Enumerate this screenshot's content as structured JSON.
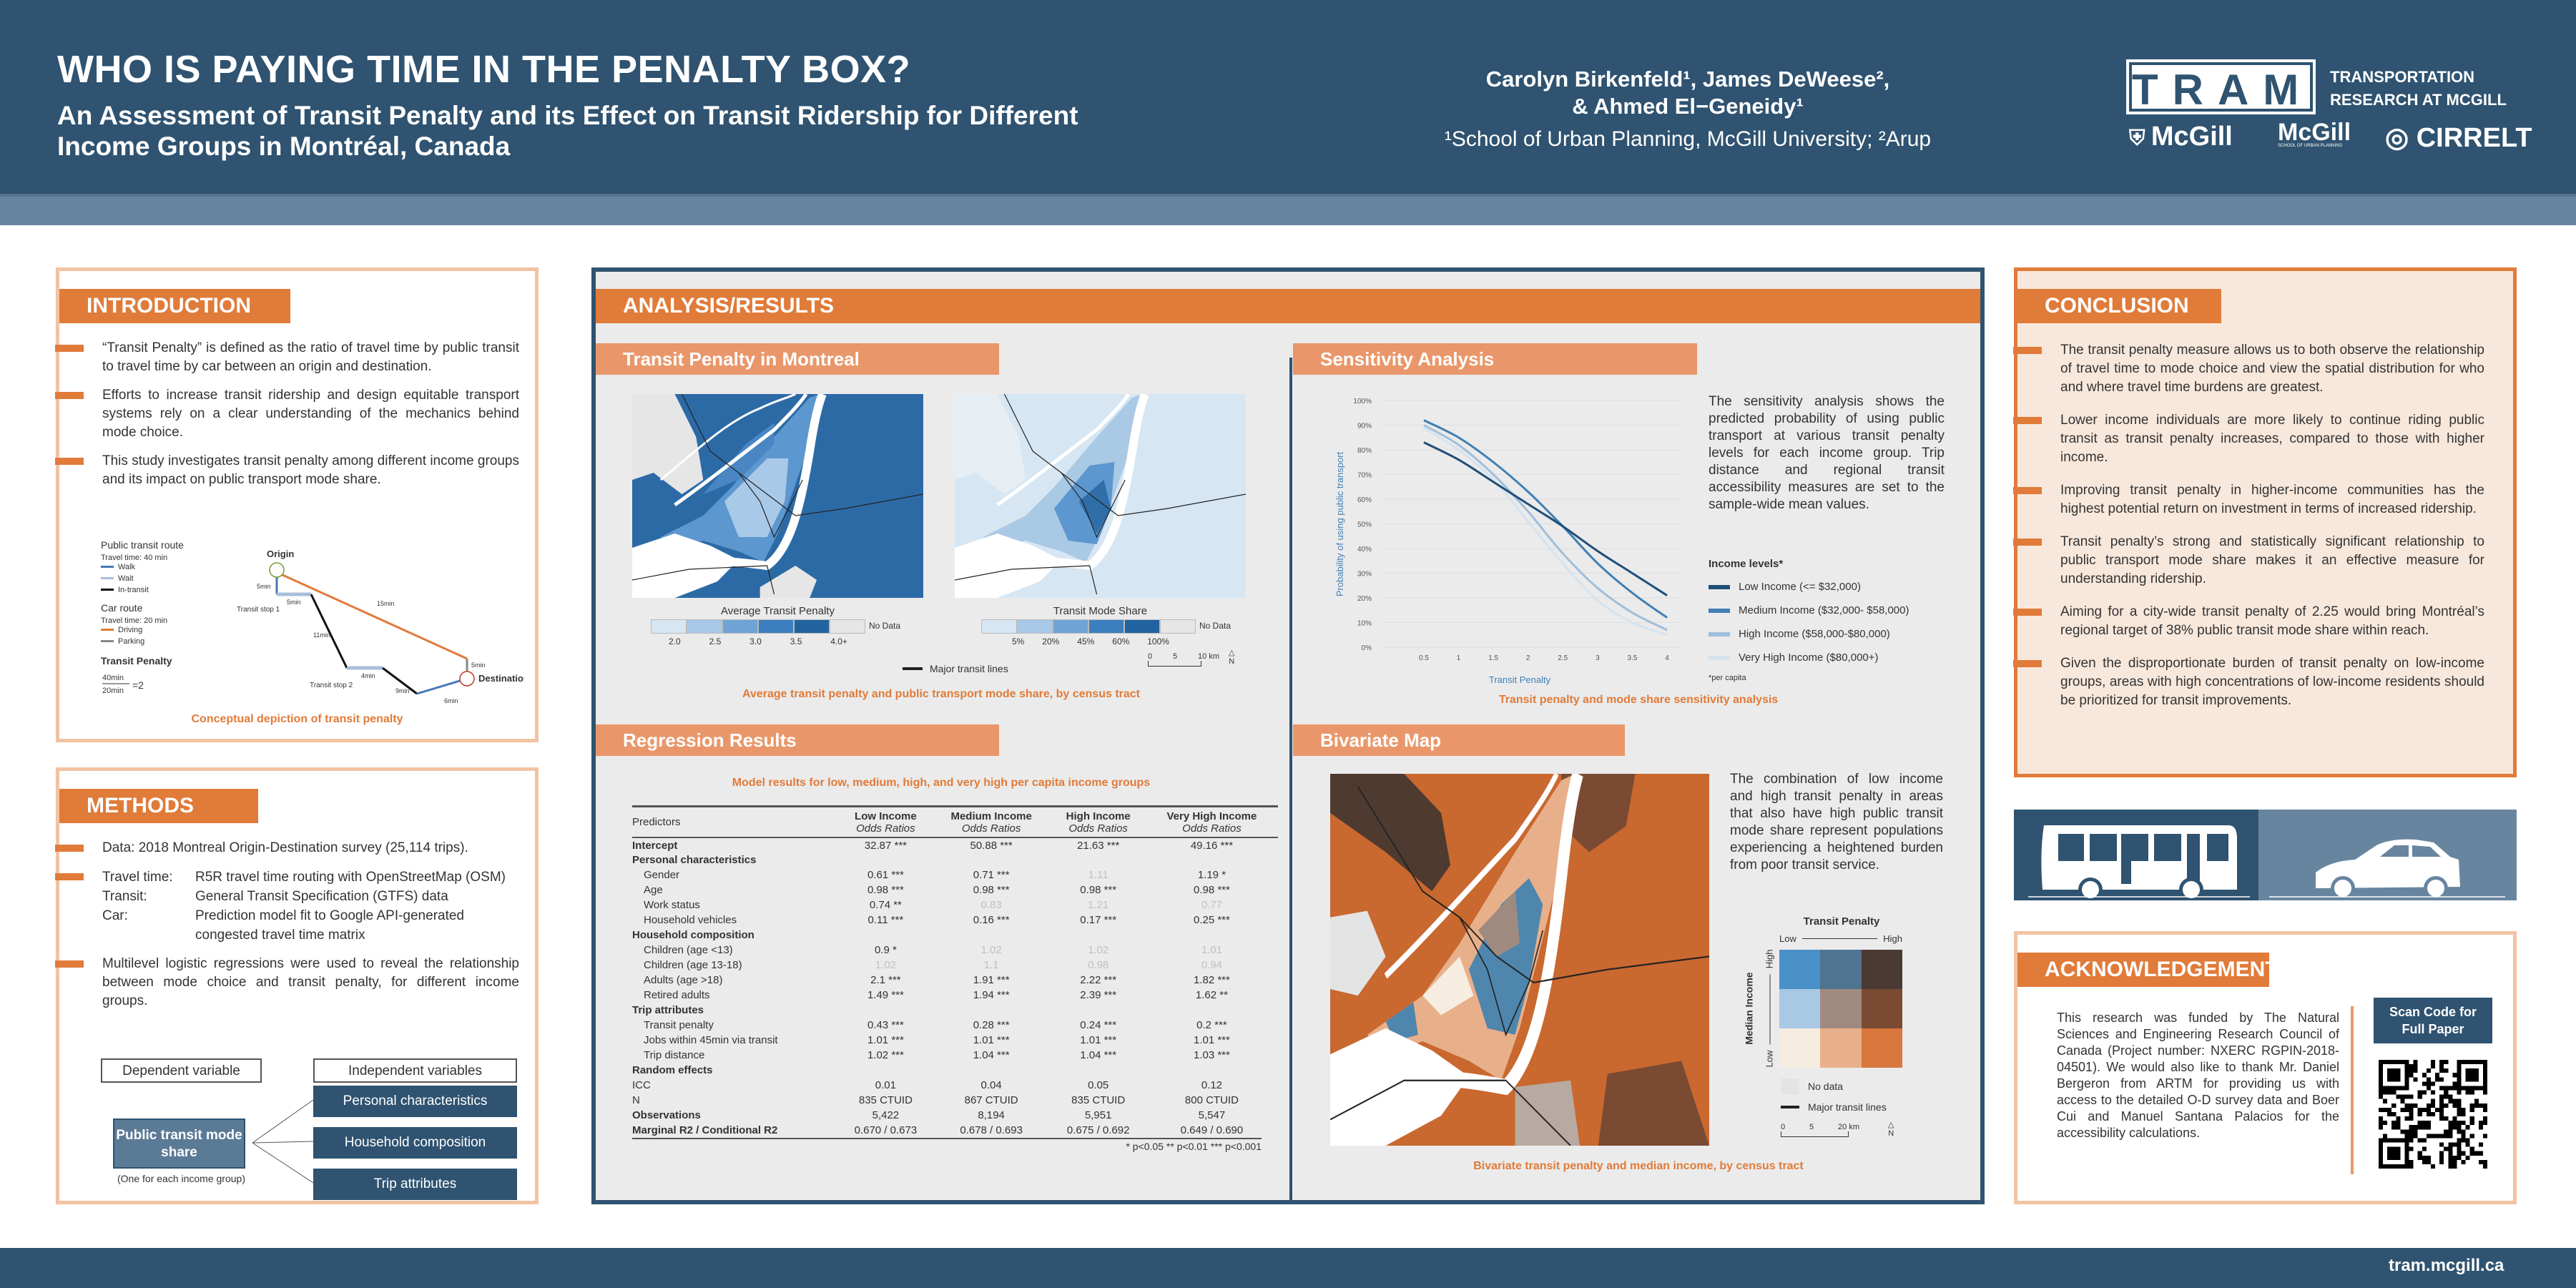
{
  "header": {
    "title": "WHO IS PAYING TIME IN THE PENALTY BOX?",
    "subtitle_line1": "An Assessment of Transit Penalty and its Effect on Transit Ridership for Different",
    "subtitle_line2": "Income Groups in Montréal, Canada",
    "authors_line1": "Carolyn Birkenfeld¹, James DeWeese²,",
    "authors_line2": "& Ahmed El−Geneidy¹",
    "affiliation": "¹School of Urban Planning, McGill University; ²Arup",
    "logos": {
      "tram": "TRAM",
      "tram_sub1": "TRANSPORTATION",
      "tram_sub2": "RESEARCH AT MCGILL",
      "mcgill": "McGill",
      "mcgill_urban": "McGill",
      "mcgill_urban_sub": "SCHOOL OF URBAN PLANNING",
      "cirrelt": "CIRRELT"
    }
  },
  "intro": {
    "heading": "INTRODUCTION",
    "bullets": [
      "“Transit Penalty” is defined as the ratio of travel time by public transit to travel time by car between an origin and destination.",
      "Efforts to increase transit ridership and design equitable transport systems rely on a clear understanding of the mechanics behind mode choice.",
      "This study investigates transit penalty among different income groups and its impact on public transport mode share."
    ],
    "diagram": {
      "pt_title": "Public transit route",
      "pt_time": "Travel time: 40 min",
      "walk": "Walk",
      "wait": "Wait",
      "in_transit": "In-transit",
      "car_title": "Car route",
      "car_time": "Travel time: 20 min",
      "driving": "Driving",
      "parking": "Parking",
      "tp_title": "Transit Penalty",
      "tp_num": "40min",
      "tp_den": "20min",
      "tp_result": "=2",
      "origin": "Origin",
      "destination": "Destination",
      "stop1": "Transit stop 1",
      "stop2": "Transit stop 2",
      "seg_walk1": "5min",
      "seg_wait1": "5min",
      "seg_transit1": "11min",
      "seg_wait2": "4min",
      "seg_transit2": "9min",
      "seg_walk2": "6min",
      "seg_drive": "15min",
      "seg_park": "5min"
    },
    "caption": "Conceptual depiction of transit penalty"
  },
  "methods": {
    "heading": "METHODS",
    "data_bullet": "Data: 2018 Montreal Origin-Destination survey (25,114 trips).",
    "travel_time_label": "Travel time:",
    "travel_time_value": "R5R travel time routing with OpenStreetMap (OSM)",
    "transit_label": "Transit:",
    "transit_value": "General Transit Specification (GTFS) data",
    "car_label": "Car:",
    "car_value": "Prediction model fit to Google API-generated congested travel time matrix",
    "regression_bullet": "Multilevel logistic regressions were used to reveal the relationship between mode choice and transit penalty, for different income groups.",
    "dependent_label": "Dependent variable",
    "independent_label": "Independent variables",
    "dependent_box": "Public transit mode share",
    "dependent_note": "(One for each income group)",
    "independent": [
      "Personal characteristics",
      "Household composition",
      "Trip attributes"
    ]
  },
  "analysis": {
    "heading": "ANALYSIS/RESULTS",
    "maps": {
      "heading": "Transit Penalty in Montreal",
      "map1_title": "Average Transit Penalty",
      "map1_ticks": [
        "2.0",
        "2.5",
        "3.0",
        "3.5",
        "4.0+"
      ],
      "map2_title": "Transit Mode Share",
      "map2_ticks": [
        "5%",
        "20%",
        "45%",
        "60%",
        "100%"
      ],
      "no_data": "No Data",
      "transit_lines": "Major transit lines",
      "scale": [
        "0",
        "5",
        "10 km"
      ],
      "north": "N",
      "caption": "Average transit penalty and public transport mode share, by census tract"
    },
    "regression": {
      "heading": "Regression Results",
      "caption": "Model results for low, medium, high, and very high per capita income groups",
      "predictors_label": "Predictors",
      "columns": [
        "Low Income",
        "Medium Income",
        "High Income",
        "Very High Income"
      ],
      "subheader": "Odds Ratios",
      "rows": [
        {
          "label": "Intercept",
          "type": "bold",
          "cells": [
            {
              "text": "32.87 ***"
            },
            {
              "text": "50.88 ***"
            },
            {
              "text": "21.63 ***"
            },
            {
              "text": "49.16 ***"
            }
          ]
        },
        {
          "label": "Personal characteristics",
          "type": "group",
          "cells": []
        },
        {
          "label": "Gender",
          "type": "item",
          "cells": [
            {
              "text": "0.61 ***"
            },
            {
              "text": "0.71 ***"
            },
            {
              "text": "1.11",
              "ns": true
            },
            {
              "text": "1.19 *"
            }
          ]
        },
        {
          "label": "Age",
          "type": "item",
          "cells": [
            {
              "text": "0.98 ***"
            },
            {
              "text": "0.98 ***"
            },
            {
              "text": "0.98 ***"
            },
            {
              "text": "0.98 ***"
            }
          ]
        },
        {
          "label": "Work status",
          "type": "item",
          "cells": [
            {
              "text": "0.74 **"
            },
            {
              "text": "0.83",
              "ns": true
            },
            {
              "text": "1.21",
              "ns": true
            },
            {
              "text": "0.77",
              "ns": true
            }
          ]
        },
        {
          "label": "Household vehicles",
          "type": "item",
          "cells": [
            {
              "text": "0.11 ***"
            },
            {
              "text": "0.16 ***"
            },
            {
              "text": "0.17 ***"
            },
            {
              "text": "0.25 ***"
            }
          ]
        },
        {
          "label": "Household composition",
          "type": "group",
          "cells": []
        },
        {
          "label": "Children (age <13)",
          "type": "item",
          "cells": [
            {
              "text": "0.9 *"
            },
            {
              "text": "1.02",
              "ns": true
            },
            {
              "text": "1.02",
              "ns": true
            },
            {
              "text": "1.01",
              "ns": true
            }
          ]
        },
        {
          "label": "Children (age 13-18)",
          "type": "item",
          "cells": [
            {
              "text": "1.02",
              "ns": true
            },
            {
              "text": "1.1",
              "ns": true
            },
            {
              "text": "0.98",
              "ns": true
            },
            {
              "text": "0.94",
              "ns": true
            }
          ]
        },
        {
          "label": "Adults (age >18)",
          "type": "item",
          "cells": [
            {
              "text": "2.1 ***"
            },
            {
              "text": "1.91 ***"
            },
            {
              "text": "2.22 ***"
            },
            {
              "text": "1.82 ***"
            }
          ]
        },
        {
          "label": "Retired adults",
          "type": "item",
          "cells": [
            {
              "text": "1.49 ***"
            },
            {
              "text": "1.94 ***"
            },
            {
              "text": "2.39 ***"
            },
            {
              "text": "1.62 **"
            }
          ]
        },
        {
          "label": "Trip attributes",
          "type": "group",
          "cells": []
        },
        {
          "label": "Transit penalty",
          "type": "item",
          "cells": [
            {
              "text": "0.43 ***"
            },
            {
              "text": "0.28 ***"
            },
            {
              "text": "0.24 ***"
            },
            {
              "text": "0.2 ***"
            }
          ]
        },
        {
          "label": "Jobs within 45min via transit",
          "type": "item",
          "cells": [
            {
              "text": "1.01 ***"
            },
            {
              "text": "1.01 ***"
            },
            {
              "text": "1.01 ***"
            },
            {
              "text": "1.01 ***"
            }
          ]
        },
        {
          "label": "Trip distance",
          "type": "item",
          "cells": [
            {
              "text": "1.02 ***"
            },
            {
              "text": "1.04 ***"
            },
            {
              "text": "1.04 ***"
            },
            {
              "text": "1.03 ***"
            }
          ]
        },
        {
          "label": "Random effects",
          "type": "group",
          "cells": []
        },
        {
          "label": "ICC",
          "type": "stat",
          "cells": [
            {
              "text": "0.01"
            },
            {
              "text": "0.04"
            },
            {
              "text": "0.05"
            },
            {
              "text": "0.12"
            }
          ]
        },
        {
          "label": "N",
          "type": "stat",
          "cells": [
            {
              "text": "835 CTUID"
            },
            {
              "text": "867 CTUID"
            },
            {
              "text": "835 CTUID"
            },
            {
              "text": "800 CTUID"
            }
          ]
        },
        {
          "label": "Observations",
          "type": "bold",
          "cells": [
            {
              "text": "5,422"
            },
            {
              "text": "8,194"
            },
            {
              "text": "5,951"
            },
            {
              "text": "5,547"
            }
          ]
        },
        {
          "label": "Marginal R2 / Conditional R2",
          "type": "bold",
          "cells": [
            {
              "text": "0.670 / 0.673"
            },
            {
              "text": "0.678 / 0.693"
            },
            {
              "text": "0.675 / 0.692"
            },
            {
              "text": "0.649 / 0.690"
            }
          ]
        }
      ],
      "footnote": "* p<0.05   ** p<0.01   *** p<0.001"
    },
    "sensitivity": {
      "heading": "Sensitivity Analysis",
      "text": "The sensitivity analysis shows the predicted probability of using public transport at various transit penalty levels for each income group. Trip distance and regional transit accessibility measures are set to the sample-wide mean values.",
      "legend_title": "Income levels*",
      "per_capita": "*per capita",
      "caption": "Transit penalty and mode share sensitivity analysis"
    },
    "bivariate": {
      "heading": "Bivariate Map",
      "text": "The combination of low income and high transit penalty in areas that also have high public transit mode share represent populations experiencing a heightened burden from poor transit service.",
      "legend_title": "Transit Penalty",
      "x_low": "Low",
      "x_high": "High",
      "y_title": "Median Income",
      "y_low": "Low",
      "y_high": "High",
      "no_data": "No data",
      "transit_lines": "Major transit lines",
      "scale": [
        "0",
        "5",
        "20 km"
      ],
      "north": "N",
      "caption": "Bivariate transit penalty and median income, by census tract"
    }
  },
  "chart_data": {
    "type": "line",
    "xlabel": "Transit Penalty",
    "ylabel": "Probability of using public transport",
    "x": [
      0.5,
      1,
      1.5,
      2,
      2.5,
      3,
      3.5,
      4
    ],
    "xticks": [
      "0.5",
      "1",
      "1.5",
      "2",
      "2.5",
      "3",
      "3.5",
      "4"
    ],
    "yticks": [
      "0%",
      "10%",
      "20%",
      "30%",
      "40%",
      "50%",
      "60%",
      "70%",
      "80%",
      "90%",
      "100%"
    ],
    "ylim": [
      0,
      100
    ],
    "grid": true,
    "legend": "right",
    "series": [
      {
        "name": "Low Income (<= $32,000)",
        "color": "#1f4e79",
        "values": [
          83,
          76,
          67,
          58,
          49,
          39,
          30,
          21
        ]
      },
      {
        "name": "Medium Income ($32,000- $58,000)",
        "color": "#3f7fb5",
        "values": [
          92,
          85,
          75,
          63,
          49,
          34,
          22,
          12
        ]
      },
      {
        "name": "High Income ($58,000-$80,000)",
        "color": "#9fbfdc",
        "values": [
          90,
          82,
          70,
          55,
          38,
          24,
          14,
          7
        ]
      },
      {
        "name": "Very High Income ($80,000+)",
        "color": "#d5e3f0",
        "values": [
          89,
          80,
          68,
          51,
          34,
          19,
          10,
          5
        ]
      }
    ]
  },
  "conclusion": {
    "heading": "CONCLUSION",
    "bullets": [
      "The transit penalty measure allows us to both observe the relationship of travel time to mode choice and view the spatial distribution for who and where travel time burdens are greatest.",
      "Lower income individuals are more likely to continue riding public transit as transit penalty increases, compared to those with higher income.",
      "Improving transit penalty in higher-income communities has the highest potential return on investment in terms of increased ridership.",
      "Transit penalty’s strong and statistically significant relationship to public transport mode share makes it an effective measure for understanding ridership.",
      "Aiming for a city-wide transit penalty of 2.25 would bring Montréal’s regional target of 38% public transit mode share within reach.",
      "Given the disproportionate burden of transit penalty on low-income groups, areas with high concentrations of low-income residents should be prioritized for transit improvements."
    ]
  },
  "acknowledgements": {
    "heading": "ACKNOWLEDGEMENTS",
    "text": "This research was funded by The Natural Sciences and Engineering Research Council of Canada (Project number: NXERC RGPIN-2018-04501). We would also like to thank Mr. Daniel Bergeron from ARTM for providing us with access to the detailed O-D survey data and Boer Cui and Manuel Santana Palacios for the accessibility calculations.",
    "scan_code": "Scan Code for Full Paper"
  },
  "footer": {
    "url": "tram.mcgill.ca"
  },
  "colors": {
    "navy": "#2f5370",
    "orange": "#e07b39",
    "light_orange": "#e9976a",
    "conclusion_bg": "#f8e8dc",
    "panel_bg": "#ebebeb"
  },
  "icons": [
    "bus-icon",
    "car-icon",
    "north-arrow-icon",
    "qr-code"
  ]
}
